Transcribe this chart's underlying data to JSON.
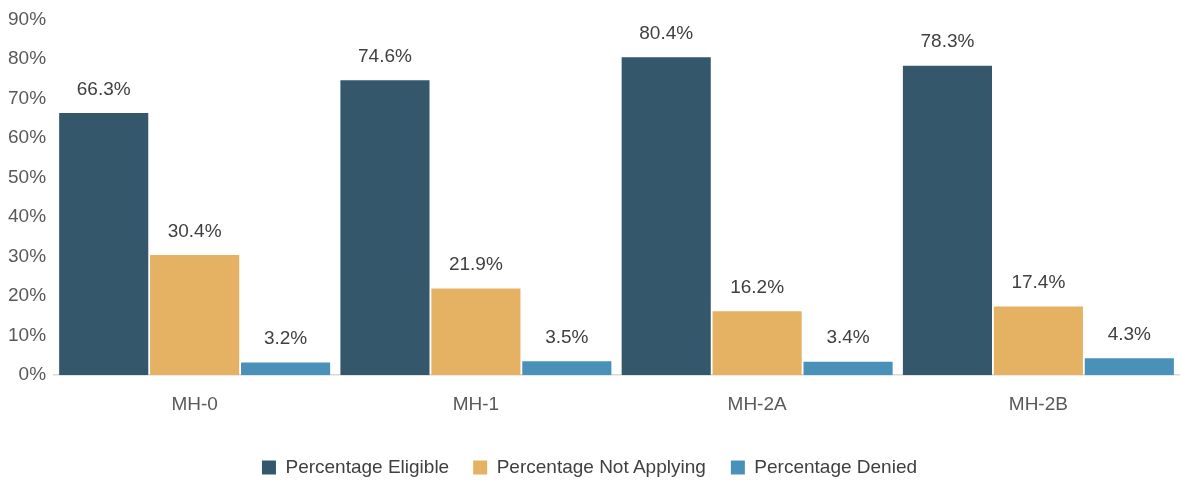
{
  "chart_data": {
    "type": "bar",
    "categories": [
      "MH-0",
      "MH-1",
      "MH-2A",
      "MH-2B"
    ],
    "series": [
      {
        "name": "Percentage Eligible",
        "color": "#34576c",
        "values": [
          66.3,
          74.6,
          80.4,
          78.3
        ],
        "value_labels": [
          "66.3%",
          "74.6%",
          "80.4%",
          "78.3%"
        ]
      },
      {
        "name": "Percentage Not Applying",
        "color": "#e5b163",
        "values": [
          30.4,
          21.9,
          16.2,
          17.4
        ],
        "value_labels": [
          "30.4%",
          "21.9%",
          "16.2%",
          "17.4%"
        ]
      },
      {
        "name": "Percentage Denied",
        "color": "#4a91b9",
        "values": [
          3.2,
          3.5,
          3.4,
          4.3
        ],
        "value_labels": [
          "3.2%",
          "3.5%",
          "3.4%",
          "4.3%"
        ]
      }
    ],
    "ylim": [
      0,
      90
    ],
    "yticks": [
      {
        "value": 0,
        "label": "0%"
      },
      {
        "value": 10,
        "label": "10%"
      },
      {
        "value": 20,
        "label": "20%"
      },
      {
        "value": 30,
        "label": "30%"
      },
      {
        "value": 40,
        "label": "40%"
      },
      {
        "value": 50,
        "label": "50%"
      },
      {
        "value": 60,
        "label": "60%"
      },
      {
        "value": 70,
        "label": "70%"
      },
      {
        "value": 80,
        "label": "80%"
      },
      {
        "value": 90,
        "label": "90%"
      }
    ],
    "grid": false,
    "legend": "bottom"
  }
}
